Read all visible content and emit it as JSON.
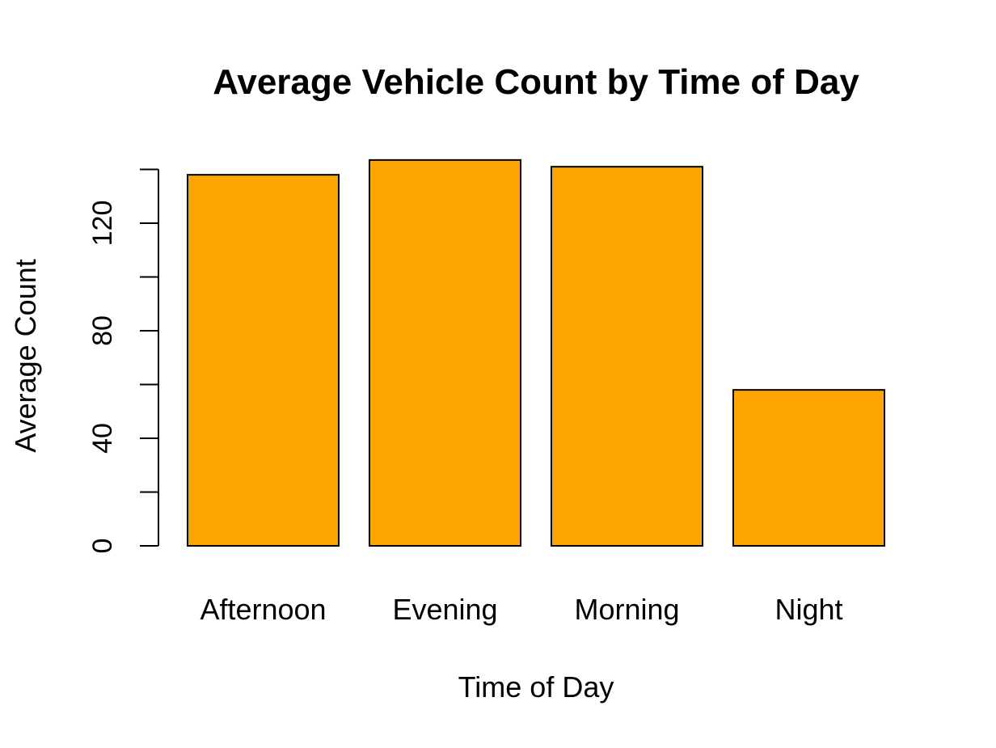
{
  "chart_data": {
    "type": "bar",
    "title": "Average Vehicle Count by Time of Day",
    "xlabel": "Time of Day",
    "ylabel": "Average Count",
    "categories": [
      "Afternoon",
      "Evening",
      "Morning",
      "Night"
    ],
    "values": [
      138,
      143.5,
      141,
      58
    ],
    "ylim": [
      0,
      140
    ],
    "yticks": [
      0,
      20,
      40,
      60,
      80,
      100,
      120,
      140
    ],
    "ytick_labels": [
      {
        "value": 0,
        "label": "0"
      },
      {
        "value": 40,
        "label": "40"
      },
      {
        "value": 80,
        "label": "80"
      },
      {
        "value": 120,
        "label": "120"
      }
    ],
    "grid": false,
    "legend": "none",
    "colors": {
      "bar_fill": "#FFA500",
      "bar_stroke": "#000000",
      "axis": "#000000",
      "text": "#000000",
      "background": "#FFFFFF"
    }
  }
}
